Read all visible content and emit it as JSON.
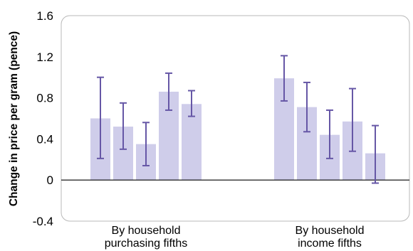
{
  "chart_data": {
    "type": "bar",
    "ylabel": "Change in price per gram (pence)",
    "xlabel": "",
    "ylim": [
      -0.4,
      1.6
    ],
    "yticks": [
      -0.4,
      0,
      0.4,
      0.8,
      1.2,
      1.6
    ],
    "ytick_labels": [
      "-0.4",
      "0",
      "0.4",
      "0.8",
      "1.2",
      "1.6"
    ],
    "grid": false,
    "error_bars": true,
    "groups": [
      {
        "label_lines": [
          "By household",
          "purchasing fifths"
        ],
        "values": [
          0.6,
          0.52,
          0.35,
          0.86,
          0.74
        ],
        "error_low": [
          0.21,
          0.3,
          0.14,
          0.68,
          0.62
        ],
        "error_high": [
          1.0,
          0.75,
          0.56,
          1.04,
          0.87
        ]
      },
      {
        "label_lines": [
          "By household",
          "income fifths"
        ],
        "values": [
          0.99,
          0.71,
          0.44,
          0.57,
          0.26
        ],
        "error_low": [
          0.77,
          0.47,
          0.21,
          0.28,
          -0.03
        ],
        "error_high": [
          1.21,
          0.95,
          0.68,
          0.89,
          0.53
        ]
      }
    ],
    "colors": {
      "bar": "#cfcdea",
      "error_bar": "#6657a6",
      "frame": "#b8b8b8",
      "zero_line": "#000000"
    }
  }
}
